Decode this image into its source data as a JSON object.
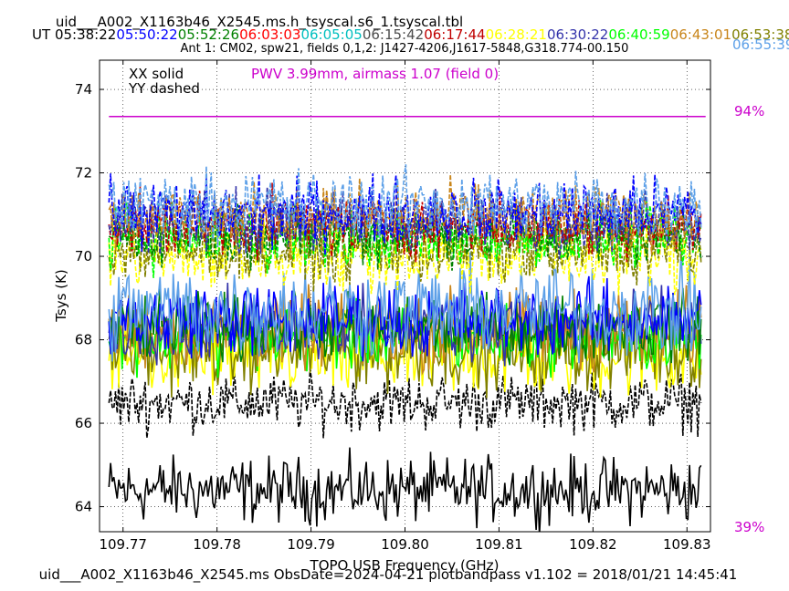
{
  "header": {
    "title": "uid___A002_X1163b46_X2545.ms.h_tsyscal.s6_1.tsyscal.tbl",
    "ut_label": "UT",
    "times": [
      {
        "text": "05:38:22",
        "color": "#000000"
      },
      {
        "text": "05:50:22",
        "color": "#0000ff"
      },
      {
        "text": "05:52:26",
        "color": "#008000"
      },
      {
        "text": "06:03:03",
        "color": "#ff0000"
      },
      {
        "text": "06:05:05",
        "color": "#00bfbf"
      },
      {
        "text": "06:15:42",
        "color": "#4d4d4d"
      },
      {
        "text": "06:17:44",
        "color": "#c00000"
      },
      {
        "text": "06:28:21",
        "color": "#ffff00"
      },
      {
        "text": "06:30:22",
        "color": "#3333aa"
      },
      {
        "text": "06:40:59",
        "color": "#00ff00"
      },
      {
        "text": "06:43:01",
        "color": "#c8851a"
      },
      {
        "text": "06:53:38",
        "color": "#808000"
      },
      {
        "text": "06:55:39",
        "color": "#5da0e8"
      }
    ],
    "subtitle": "Ant 1: CM02,  spw21,  fields 0,1,2: J1427-4206,J1617-5848,G318.774-00.150"
  },
  "footer": "uid___A002_X1163b46_X2545.ms  ObsDate=2024-04-21   plotbandpass v1.102 = 2018/01/21 14:45:41",
  "chart_data": {
    "type": "line",
    "xlabel": "TOPO USB Frequency (GHz)",
    "ylabel": "Tsys (K)",
    "xlim": [
      109.7675,
      109.8325
    ],
    "ylim": [
      63.4,
      74.7
    ],
    "xticks": [
      109.77,
      109.78,
      109.79,
      109.8,
      109.81,
      109.82,
      109.83
    ],
    "xtick_labels": [
      "109.77",
      "109.78",
      "109.79",
      "109.80",
      "109.81",
      "109.82",
      "109.83"
    ],
    "yticks": [
      64,
      66,
      68,
      70,
      72,
      74
    ],
    "ytick_labels": [
      "64",
      "66",
      "68",
      "70",
      "72",
      "74"
    ],
    "grid": true,
    "legend_notes": [
      "XX solid",
      "YY dashed"
    ],
    "pwv_annotation": {
      "text": "PWV 3.99mm, airmass 1.07 (field 0)",
      "color": "#cc00cc"
    },
    "transmission": {
      "top_label": "94%",
      "bottom_label": "39%",
      "color": "#cc00cc",
      "value_in_tsys_units": 73.35
    },
    "x_range_data": [
      109.7685,
      109.8315
    ],
    "series": [
      {
        "color": "#000000",
        "style": "solid",
        "mean": 64.4,
        "noise": 0.38
      },
      {
        "color": "#000000",
        "style": "dashed",
        "mean": 66.5,
        "noise": 0.33
      },
      {
        "color": "#ffff00",
        "style": "solid",
        "mean": 67.6,
        "noise": 0.5
      },
      {
        "color": "#808000",
        "style": "solid",
        "mean": 67.75,
        "noise": 0.45
      },
      {
        "color": "#00ff00",
        "style": "solid",
        "mean": 68.05,
        "noise": 0.38
      },
      {
        "color": "#c8851a",
        "style": "solid",
        "mean": 68.25,
        "noise": 0.45
      },
      {
        "color": "#3333aa",
        "style": "solid",
        "mean": 68.35,
        "noise": 0.4
      },
      {
        "color": "#008000",
        "style": "solid",
        "mean": 68.3,
        "noise": 0.38
      },
      {
        "color": "#0000ff",
        "style": "solid",
        "mean": 68.5,
        "noise": 0.42
      },
      {
        "color": "#5da0e8",
        "style": "solid",
        "mean": 68.7,
        "noise": 0.55
      },
      {
        "color": "#ffff00",
        "style": "dashed",
        "mean": 70.0,
        "noise": 0.4
      },
      {
        "color": "#808000",
        "style": "dashed",
        "mean": 70.15,
        "noise": 0.38
      },
      {
        "color": "#00ff00",
        "style": "dashed",
        "mean": 70.45,
        "noise": 0.35
      },
      {
        "color": "#008000",
        "style": "dashed",
        "mean": 70.55,
        "noise": 0.35
      },
      {
        "color": "#c00000",
        "style": "dashed",
        "mean": 70.75,
        "noise": 0.35
      },
      {
        "color": "#3333aa",
        "style": "dashed",
        "mean": 70.85,
        "noise": 0.35
      },
      {
        "color": "#c8851a",
        "style": "dashed",
        "mean": 70.95,
        "noise": 0.38
      },
      {
        "color": "#0000ff",
        "style": "dashed",
        "mean": 71.05,
        "noise": 0.38
      },
      {
        "color": "#5da0e8",
        "style": "dashed",
        "mean": 71.25,
        "noise": 0.4
      }
    ]
  }
}
